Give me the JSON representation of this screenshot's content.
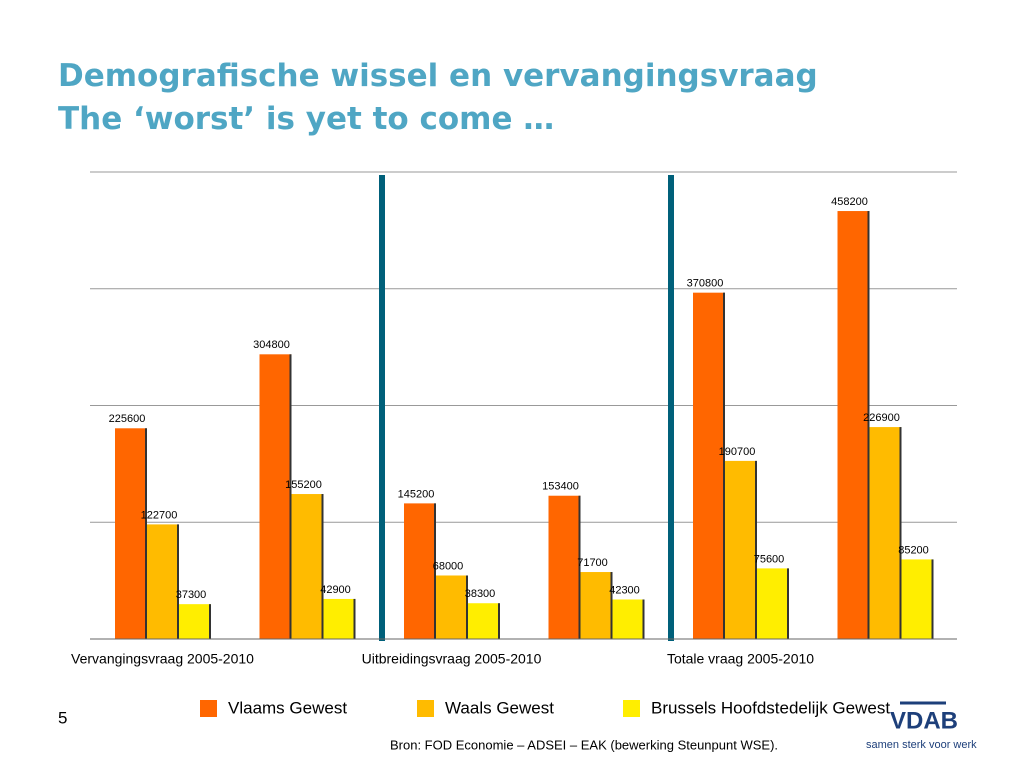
{
  "title_lines": [
    "Demografische wissel en vervangingsvraag",
    "The ‘worst’ is yet to come …"
  ],
  "page_number": "5",
  "source": "Bron: FOD Economie – ADSEI – EAK (bewerking Steunpunt WSE).",
  "logo": {
    "name": "VDAB",
    "tagline": "samen sterk voor werk"
  },
  "chart_data": {
    "type": "bar",
    "categories": [
      null,
      null,
      null,
      null,
      null,
      null
    ],
    "sections": [
      "Vervangingsvraag 2005-2010",
      "Uitbreidingsvraag 2005-2010",
      "Totale vraag 2005-2010"
    ],
    "series": [
      {
        "name": "Vlaams Gewest",
        "color": "#ff6600",
        "values": [
          225600,
          304800,
          145200,
          153400,
          370800,
          458200
        ]
      },
      {
        "name": "Waals Gewest",
        "color": "#ffbb00",
        "values": [
          122700,
          155200,
          68000,
          71700,
          190700,
          226900
        ]
      },
      {
        "name": "Brussels Hoofdstedelijk Gewest",
        "color": "#ffee00",
        "values": [
          37300,
          42900,
          38300,
          42300,
          75600,
          85200
        ]
      }
    ],
    "ylim": [
      0,
      500000
    ],
    "yticks": [
      0,
      125000,
      250000,
      375000,
      500000
    ],
    "grid": true,
    "legend": "bottom"
  }
}
